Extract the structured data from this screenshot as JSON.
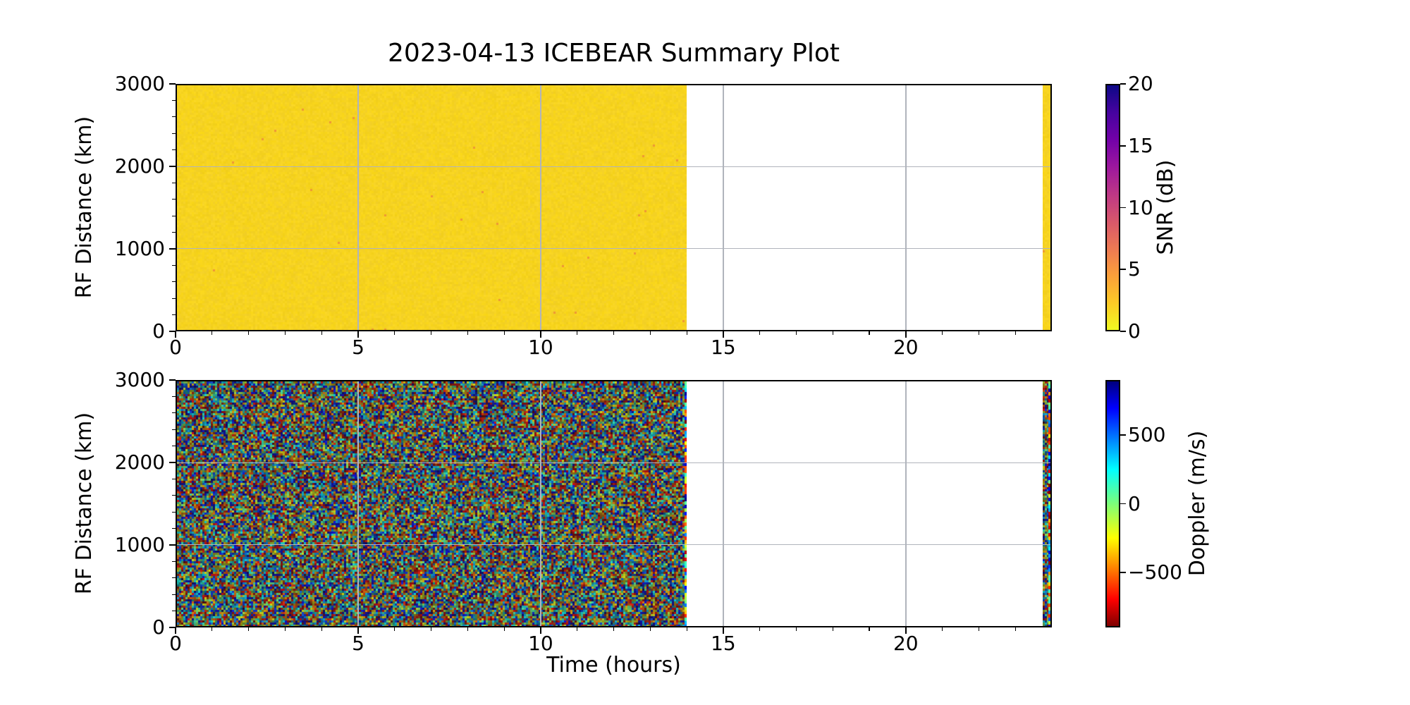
{
  "figure": {
    "title": "2023-04-13 ICEBEAR Summary Plot",
    "background": "#ffffff"
  },
  "axis_shared": {
    "xlabel": "Time (hours)"
  },
  "chart_data": [
    {
      "type": "heatmap",
      "name": "snr-panel",
      "title": "2023-04-13 ICEBEAR Summary Plot",
      "xlabel": "Time (hours)",
      "ylabel": "RF Distance (km)",
      "xlim": [
        0,
        24
      ],
      "ylim": [
        0,
        3000
      ],
      "x_ticks": [
        0,
        5,
        10,
        15,
        20
      ],
      "x_tick_labels": [
        "0",
        "5",
        "10",
        "15",
        "20"
      ],
      "x_minor_step": 1,
      "y_ticks": [
        0,
        1000,
        2000,
        3000
      ],
      "y_tick_labels": [
        "0",
        "1000",
        "2000",
        "3000"
      ],
      "y_minor_step": 200,
      "grid": true,
      "colorbar": {
        "label": "SNR (dB)",
        "range": [
          0,
          20
        ],
        "ticks": [
          20,
          15,
          10,
          5,
          0
        ],
        "tick_labels": [
          "20",
          "15",
          "10",
          "5",
          "0"
        ],
        "colormap": "plasma_r"
      },
      "coverage": [
        {
          "t_start": 0,
          "t_end": 14,
          "value": "uniform SNR near 0-1 dB (solid yellow)"
        },
        {
          "t_start": 23.75,
          "t_end": 24,
          "value": "uniform SNR near 0-1 dB (solid yellow strip)"
        }
      ]
    },
    {
      "type": "heatmap",
      "name": "doppler-panel",
      "title": "",
      "xlabel": "Time (hours)",
      "ylabel": "RF Distance (km)",
      "xlim": [
        0,
        24
      ],
      "ylim": [
        0,
        3000
      ],
      "x_ticks": [
        0,
        5,
        10,
        15,
        20
      ],
      "x_tick_labels": [
        "0",
        "5",
        "10",
        "15",
        "20"
      ],
      "x_minor_step": 1,
      "y_ticks": [
        0,
        1000,
        2000,
        3000
      ],
      "y_tick_labels": [
        "0",
        "1000",
        "2000",
        "3000"
      ],
      "y_minor_step": 200,
      "grid": true,
      "colorbar": {
        "label": "Doppler (m/s)",
        "range": [
          -900,
          900
        ],
        "ticks": [
          500,
          0,
          -500
        ],
        "tick_labels": [
          "500",
          "0",
          "−500"
        ],
        "colormap": "jet_r"
      },
      "coverage": [
        {
          "t_start": 0,
          "t_end": 14,
          "value": "random Doppler noise spanning full ±900 m/s range"
        },
        {
          "t_start": 23.75,
          "t_end": 24,
          "value": "random Doppler noise spanning full ±900 m/s range"
        }
      ]
    }
  ],
  "colors": {
    "spine": "#000000",
    "grid": "#b0b4bc",
    "snr_fill_rgb": [
      246,
      211,
      32
    ],
    "snr_speck_rgb": [
      238,
      150,
      54
    ],
    "plasma_stops": [
      "#0d0887",
      "#46039f",
      "#7201a8",
      "#9c179e",
      "#bd3786",
      "#d8576b",
      "#ed7953",
      "#fb9f3a",
      "#fdca26",
      "#f0f921"
    ],
    "jet_stops": [
      [
        0.0,
        [
          0,
          0,
          127
        ]
      ],
      [
        0.11,
        [
          0,
          0,
          255
        ]
      ],
      [
        0.36,
        [
          0,
          255,
          255
        ]
      ],
      [
        0.5,
        [
          124,
          255,
          121
        ]
      ],
      [
        0.64,
        [
          255,
          255,
          0
        ]
      ],
      [
        0.89,
        [
          255,
          0,
          0
        ]
      ],
      [
        1.0,
        [
          127,
          0,
          0
        ]
      ]
    ]
  }
}
